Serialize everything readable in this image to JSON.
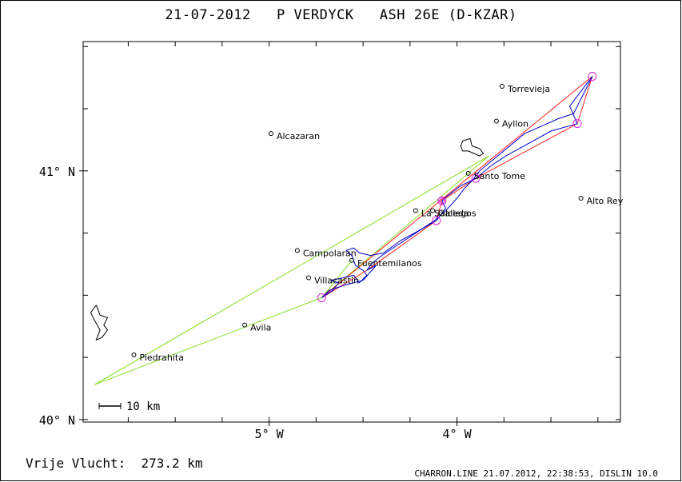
{
  "header": {
    "title": "21-07-2012   P VERDYCK   ASH 26E (D-KZAR)"
  },
  "footer": {
    "free_flight": "Vrije Vlucht:  273.2 km",
    "credits": "CHARRON.LINE 21.07.2012, 22:38:53, DISLIN 10.0"
  },
  "map": {
    "lon_range": [
      -5.99,
      -3.13
    ],
    "lat_range": [
      39.99,
      41.52
    ],
    "lat_ticks": [
      {
        "value": 41.0,
        "label": "41° N"
      },
      {
        "value": 40.0,
        "label": "40° N"
      }
    ],
    "lon_ticks": [
      {
        "value": -5.0,
        "label": "5° W"
      },
      {
        "value": -4.0,
        "label": "4° W"
      }
    ],
    "scale_bar": {
      "label": "10 km"
    },
    "colors": {
      "track": "#0000cc",
      "task": "#ff2020",
      "free_lines": "#88dd22",
      "turnpoint": "#dd22dd",
      "water": "#000000"
    },
    "towns": [
      {
        "name": "Torrevieja",
        "lon": -3.76,
        "lat": 41.34
      },
      {
        "name": "Ayllon",
        "lon": -3.79,
        "lat": 41.2
      },
      {
        "name": "Alcazaran",
        "lon": -4.99,
        "lat": 41.15
      },
      {
        "name": "Santo Tome",
        "lon": -3.94,
        "lat": 40.99
      },
      {
        "name": "Alto Rey",
        "lon": -3.34,
        "lat": 40.89
      },
      {
        "name": "La Salceda",
        "lon": -4.22,
        "lat": 40.84
      },
      {
        "name": "Gallegos",
        "lon": -4.13,
        "lat": 40.84
      },
      {
        "name": "Campolaran",
        "lon": -4.85,
        "lat": 40.68
      },
      {
        "name": "Fuentemilanos",
        "lon": -4.56,
        "lat": 40.64
      },
      {
        "name": "Villacastin",
        "lon": -4.79,
        "lat": 40.57
      },
      {
        "name": "Avila",
        "lon": -5.13,
        "lat": 40.38
      },
      {
        "name": "Piedrahita",
        "lon": -5.72,
        "lat": 40.26
      }
    ],
    "task_points": [
      {
        "lon": -4.72,
        "lat": 40.49
      },
      {
        "lon": -3.28,
        "lat": 41.38
      },
      {
        "lon": -3.36,
        "lat": 41.19
      },
      {
        "lon": -3.9,
        "lat": 40.97
      },
      {
        "lon": -4.08,
        "lat": 40.88
      },
      {
        "lon": -4.11,
        "lat": 40.8
      },
      {
        "lon": -4.48,
        "lat": 40.6
      }
    ],
    "free_flight_points": [
      {
        "lon": -5.93,
        "lat": 40.14
      },
      {
        "lon": -4.72,
        "lat": 40.49
      },
      {
        "lon": -4.56,
        "lat": 40.64
      },
      {
        "lon": -3.83,
        "lat": 41.06
      }
    ],
    "track": [
      {
        "lon": -4.72,
        "lat": 40.49
      },
      {
        "lon": -4.66,
        "lat": 40.52
      },
      {
        "lon": -4.63,
        "lat": 40.55
      },
      {
        "lon": -4.67,
        "lat": 40.56
      },
      {
        "lon": -4.61,
        "lat": 40.57
      },
      {
        "lon": -4.55,
        "lat": 40.58
      },
      {
        "lon": -4.52,
        "lat": 40.55
      },
      {
        "lon": -4.48,
        "lat": 40.58
      },
      {
        "lon": -4.5,
        "lat": 40.6
      },
      {
        "lon": -4.54,
        "lat": 40.62
      },
      {
        "lon": -4.56,
        "lat": 40.66
      },
      {
        "lon": -4.59,
        "lat": 40.68
      },
      {
        "lon": -4.55,
        "lat": 40.69
      },
      {
        "lon": -4.52,
        "lat": 40.67
      },
      {
        "lon": -4.46,
        "lat": 40.66
      },
      {
        "lon": -4.39,
        "lat": 40.67
      },
      {
        "lon": -4.3,
        "lat": 40.72
      },
      {
        "lon": -4.25,
        "lat": 40.74
      },
      {
        "lon": -4.18,
        "lat": 40.77
      },
      {
        "lon": -4.12,
        "lat": 40.8
      },
      {
        "lon": -4.06,
        "lat": 40.84
      },
      {
        "lon": -4.0,
        "lat": 40.89
      },
      {
        "lon": -3.96,
        "lat": 40.93
      },
      {
        "lon": -3.92,
        "lat": 40.96
      },
      {
        "lon": -3.88,
        "lat": 41.0
      },
      {
        "lon": -3.8,
        "lat": 41.05
      },
      {
        "lon": -3.72,
        "lat": 41.1
      },
      {
        "lon": -3.64,
        "lat": 41.15
      },
      {
        "lon": -3.55,
        "lat": 41.18
      },
      {
        "lon": -3.46,
        "lat": 41.21
      },
      {
        "lon": -3.38,
        "lat": 41.23
      },
      {
        "lon": -3.34,
        "lat": 41.29
      },
      {
        "lon": -3.3,
        "lat": 41.35
      },
      {
        "lon": -3.28,
        "lat": 41.38
      },
      {
        "lon": -3.33,
        "lat": 41.33
      },
      {
        "lon": -3.4,
        "lat": 41.26
      },
      {
        "lon": -3.36,
        "lat": 41.19
      },
      {
        "lon": -3.5,
        "lat": 41.16
      },
      {
        "lon": -3.62,
        "lat": 41.11
      },
      {
        "lon": -3.74,
        "lat": 41.06
      },
      {
        "lon": -3.82,
        "lat": 41.02
      },
      {
        "lon": -3.9,
        "lat": 40.97
      },
      {
        "lon": -3.98,
        "lat": 40.94
      },
      {
        "lon": -4.05,
        "lat": 40.9
      },
      {
        "lon": -4.08,
        "lat": 40.88
      },
      {
        "lon": -4.06,
        "lat": 40.85
      },
      {
        "lon": -4.11,
        "lat": 40.8
      },
      {
        "lon": -4.2,
        "lat": 40.76
      },
      {
        "lon": -4.3,
        "lat": 40.71
      },
      {
        "lon": -4.4,
        "lat": 40.66
      },
      {
        "lon": -4.45,
        "lat": 40.63
      },
      {
        "lon": -4.48,
        "lat": 40.6
      },
      {
        "lon": -4.43,
        "lat": 40.62
      },
      {
        "lon": -4.5,
        "lat": 40.56
      },
      {
        "lon": -4.6,
        "lat": 40.54
      },
      {
        "lon": -4.68,
        "lat": 40.52
      },
      {
        "lon": -4.72,
        "lat": 40.49
      }
    ],
    "water_left": [
      {
        "lon": -5.92,
        "lat": 40.46
      },
      {
        "lon": -5.9,
        "lat": 40.42
      },
      {
        "lon": -5.86,
        "lat": 40.41
      },
      {
        "lon": -5.88,
        "lat": 40.38
      },
      {
        "lon": -5.86,
        "lat": 40.36
      },
      {
        "lon": -5.89,
        "lat": 40.33
      },
      {
        "lon": -5.92,
        "lat": 40.32
      },
      {
        "lon": -5.9,
        "lat": 40.36
      },
      {
        "lon": -5.93,
        "lat": 40.4
      },
      {
        "lon": -5.95,
        "lat": 40.43
      },
      {
        "lon": -5.92,
        "lat": 40.46
      }
    ],
    "water_right": [
      {
        "lon": -3.97,
        "lat": 41.12
      },
      {
        "lon": -3.93,
        "lat": 41.13
      },
      {
        "lon": -3.92,
        "lat": 41.1
      },
      {
        "lon": -3.88,
        "lat": 41.09
      },
      {
        "lon": -3.86,
        "lat": 41.07
      },
      {
        "lon": -3.88,
        "lat": 41.06
      },
      {
        "lon": -3.91,
        "lat": 41.07
      },
      {
        "lon": -3.94,
        "lat": 41.08
      },
      {
        "lon": -3.97,
        "lat": 41.08
      },
      {
        "lon": -3.98,
        "lat": 41.1
      },
      {
        "lon": -3.97,
        "lat": 41.12
      }
    ]
  }
}
